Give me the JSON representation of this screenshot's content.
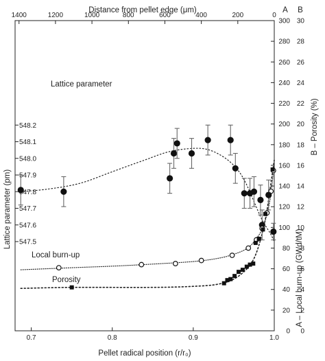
{
  "chart_data": {
    "type": "scatter",
    "x_axis_bottom": {
      "label": "Pellet radical position (r/r₀)",
      "min": 0.68,
      "max": 1.0,
      "ticks": [
        0.7,
        0.8,
        0.9,
        1.0
      ],
      "tick_labels": [
        "0.7",
        "0.8",
        "0.9",
        "1.0"
      ]
    },
    "x_axis_top": {
      "label": "Distance from pellet edge (μm)",
      "ticks": [
        1400,
        1200,
        1000,
        800,
        600,
        400,
        200,
        0
      ],
      "tick_labels": [
        "1400",
        "1200",
        "1000",
        "800",
        "600",
        "400",
        "200",
        "0"
      ]
    },
    "y_axis_left": {
      "label": "Lattice parameter (pm)",
      "ticks": [
        547.5,
        547.6,
        547.7,
        547.8,
        547.9,
        548.0,
        548.1,
        548.2
      ],
      "tick_labels": [
        "547.5",
        "547.6",
        "547.7",
        "547.8",
        "547.9",
        "548.0",
        "548.1",
        "548.2"
      ]
    },
    "y_axis_right_A": {
      "label": "A – Local burn-up (GWd/tM)",
      "header": "A",
      "min": 0,
      "max": 300,
      "ticks": [
        0,
        20,
        40,
        60,
        80,
        100,
        120,
        140,
        160,
        180,
        200,
        220,
        240,
        260,
        280,
        300
      ],
      "tick_labels": [
        "0",
        "20",
        "40",
        "60",
        "80",
        "100",
        "120",
        "140",
        "160",
        "180",
        "200",
        "220",
        "240",
        "260",
        "280",
        "300"
      ]
    },
    "y_axis_right_B": {
      "label": "B – Porosity (%)",
      "header": "B",
      "min": 0,
      "max": 30,
      "ticks": [
        0,
        2,
        4,
        6,
        8,
        10,
        12,
        14,
        16,
        18,
        20,
        22,
        24,
        26,
        28,
        30
      ],
      "tick_labels": [
        "0",
        "2",
        "4",
        "6",
        "8",
        "10",
        "12",
        "14",
        "16",
        "18",
        "20",
        "22",
        "24",
        "26",
        "28",
        "30"
      ]
    },
    "series": [
      {
        "name": "Lattice parameter",
        "axis": "left",
        "marker": "filled-circle",
        "points": [
          {
            "x": 0.687,
            "y": 547.81,
            "err": 0.09
          },
          {
            "x": 0.74,
            "y": 547.8,
            "err": 0.09
          },
          {
            "x": 0.871,
            "y": 547.88,
            "err": 0.09
          },
          {
            "x": 0.876,
            "y": 548.03,
            "err": 0.09
          },
          {
            "x": 0.88,
            "y": 548.09,
            "err": 0.09
          },
          {
            "x": 0.898,
            "y": 548.03,
            "err": 0.09
          },
          {
            "x": 0.918,
            "y": 548.11,
            "err": 0.09
          },
          {
            "x": 0.946,
            "y": 548.11,
            "err": 0.09
          },
          {
            "x": 0.952,
            "y": 547.94,
            "err": 0.09
          },
          {
            "x": 0.963,
            "y": 547.79,
            "err": 0.09
          },
          {
            "x": 0.97,
            "y": 547.79,
            "err": 0.09
          },
          {
            "x": 0.975,
            "y": 547.8,
            "err": 0.09
          },
          {
            "x": 0.983,
            "y": 547.75,
            "err": 0.09
          },
          {
            "x": 0.985,
            "y": 547.6,
            "err": 0.09
          },
          {
            "x": 0.993,
            "y": 547.78,
            "err": 0.09
          },
          {
            "x": 0.999,
            "y": 547.56,
            "err": 0.05
          }
        ],
        "trend": [
          [
            0.687,
            547.8
          ],
          [
            0.72,
            547.815
          ],
          [
            0.76,
            547.85
          ],
          [
            0.8,
            547.92
          ],
          [
            0.84,
            547.99
          ],
          [
            0.87,
            548.04
          ],
          [
            0.9,
            548.06
          ],
          [
            0.92,
            548.05
          ],
          [
            0.94,
            548.0
          ],
          [
            0.955,
            547.93
          ],
          [
            0.965,
            547.85
          ],
          [
            0.975,
            547.74
          ],
          [
            0.985,
            547.63
          ],
          [
            0.995,
            547.55
          ],
          [
            1.0,
            547.5
          ]
        ]
      },
      {
        "name": "Local burn-up",
        "axis": "right_A",
        "marker": "open-circle",
        "points": [
          {
            "x": 0.734,
            "y": 61
          },
          {
            "x": 0.836,
            "y": 64
          },
          {
            "x": 0.878,
            "y": 65
          },
          {
            "x": 0.91,
            "y": 68
          },
          {
            "x": 0.948,
            "y": 73
          },
          {
            "x": 0.968,
            "y": 80
          },
          {
            "x": 0.978,
            "y": 88
          },
          {
            "x": 0.985,
            "y": 99
          },
          {
            "x": 0.991,
            "y": 114
          },
          {
            "x": 0.996,
            "y": 135
          },
          {
            "x": 0.999,
            "y": 155
          }
        ],
        "trend": [
          [
            0.687,
            59
          ],
          [
            0.75,
            61
          ],
          [
            0.8,
            62.5
          ],
          [
            0.85,
            64.5
          ],
          [
            0.9,
            67
          ],
          [
            0.93,
            70
          ],
          [
            0.95,
            74
          ],
          [
            0.965,
            79
          ],
          [
            0.975,
            86
          ],
          [
            0.985,
            98
          ],
          [
            0.99,
            110
          ],
          [
            0.995,
            128
          ],
          [
            1.0,
            160
          ]
        ]
      },
      {
        "name": "Porosity",
        "axis": "right_B",
        "marker": "filled-square",
        "points": [
          {
            "x": 0.75,
            "y": 4.2
          },
          {
            "x": 0.938,
            "y": 4.6
          },
          {
            "x": 0.942,
            "y": 4.9
          },
          {
            "x": 0.946,
            "y": 5.0
          },
          {
            "x": 0.951,
            "y": 5.3
          },
          {
            "x": 0.956,
            "y": 5.7
          },
          {
            "x": 0.961,
            "y": 5.9
          },
          {
            "x": 0.966,
            "y": 6.2
          },
          {
            "x": 0.97,
            "y": 6.4
          },
          {
            "x": 0.974,
            "y": 6.5
          },
          {
            "x": 0.977,
            "y": 8.5
          },
          {
            "x": 0.981,
            "y": 8.9
          },
          {
            "x": 0.986,
            "y": 9.8
          },
          {
            "x": 0.989,
            "y": 11.3
          },
          {
            "x": 0.993,
            "y": 13.2
          },
          {
            "x": 0.998,
            "y": 15.6
          }
        ],
        "trend": [
          [
            0.687,
            4.1
          ],
          [
            0.75,
            4.2
          ],
          [
            0.85,
            4.2
          ],
          [
            0.9,
            4.3
          ],
          [
            0.93,
            4.5
          ],
          [
            0.95,
            5.0
          ],
          [
            0.965,
            5.9
          ],
          [
            0.975,
            7.0
          ],
          [
            0.983,
            8.8
          ],
          [
            0.99,
            11.2
          ],
          [
            0.995,
            13.8
          ],
          [
            1.0,
            16.5
          ]
        ]
      }
    ],
    "annotations": {
      "lattice": "Lattice parameter",
      "burnup": "Local burn-up",
      "porosity": "Porosity"
    }
  }
}
